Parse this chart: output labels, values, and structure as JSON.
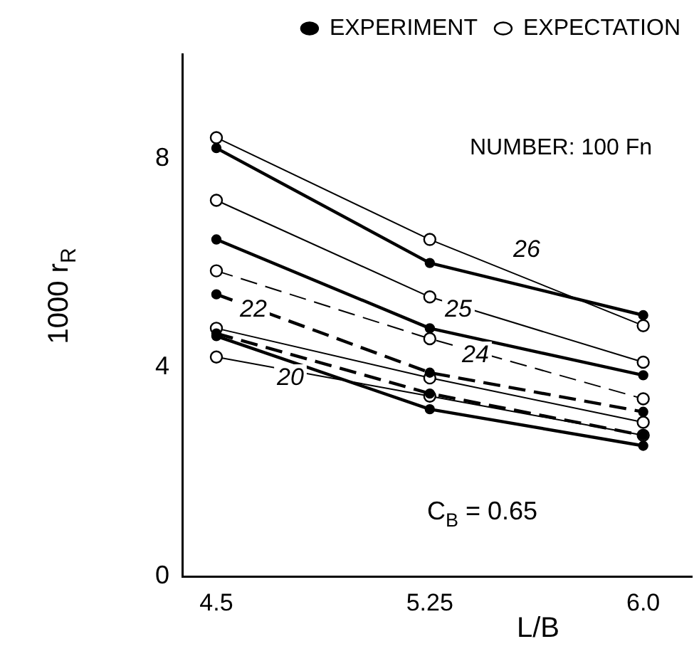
{
  "chart_data": {
    "type": "line",
    "xlabel": "L/B",
    "ylabel": "1000 r$_{R}$",
    "x": [
      4.5,
      5.25,
      6.0
    ],
    "xlim": [
      4.38,
      6.17
    ],
    "xticks": [
      4.5,
      5.25,
      {
        "value": 6,
        "label": "6.0"
      }
    ],
    "ylim": [
      0,
      10
    ],
    "yticks": [
      0,
      4,
      8
    ],
    "grid": false,
    "legend": "top right",
    "marker": "circle",
    "series": [
      {
        "name": "EXPERIMENT",
        "color": "#000000",
        "line_style": "solid",
        "values": [
          8.2,
          6.0,
          5.0
        ]
      },
      {
        "name": "EXPECTATION",
        "color": "#000000",
        "line_style": "solid",
        "values": [
          8.4,
          6.45,
          4.8
        ]
      },
      {
        "color": "#000000",
        "line_style": "solid",
        "values": [
          6.45,
          4.75,
          3.85
        ]
      },
      {
        "color": "#000000",
        "line_style": "solid",
        "values": [
          7.2,
          5.35,
          4.1
        ]
      },
      {
        "color": "#000000",
        "line_style": "dashed",
        "values": [
          5.4,
          3.9,
          3.15
        ]
      },
      {
        "color": "#000000",
        "line_style": "dashed",
        "values": [
          5.85,
          4.55,
          3.4
        ]
      },
      {
        "color": "#000000",
        "line_style": "dashed",
        "values": [
          4.65,
          3.5,
          2.7
        ]
      },
      {
        "color": "#000000",
        "line_style": "solid",
        "values": [
          4.75,
          3.8,
          2.95
        ]
      },
      {
        "color": "#000000",
        "line_style": "solid",
        "values": [
          4.6,
          3.2,
          2.5
        ]
      },
      {
        "color": "#000000",
        "line_style": "solid",
        "values": [
          4.2,
          3.45,
          2.7
        ]
      }
    ],
    "annotations": [
      "26",
      "25",
      "24",
      "22",
      "20",
      "C$_{B}$ = 0.65",
      "NUMBER: 100 Fn"
    ]
  }
}
